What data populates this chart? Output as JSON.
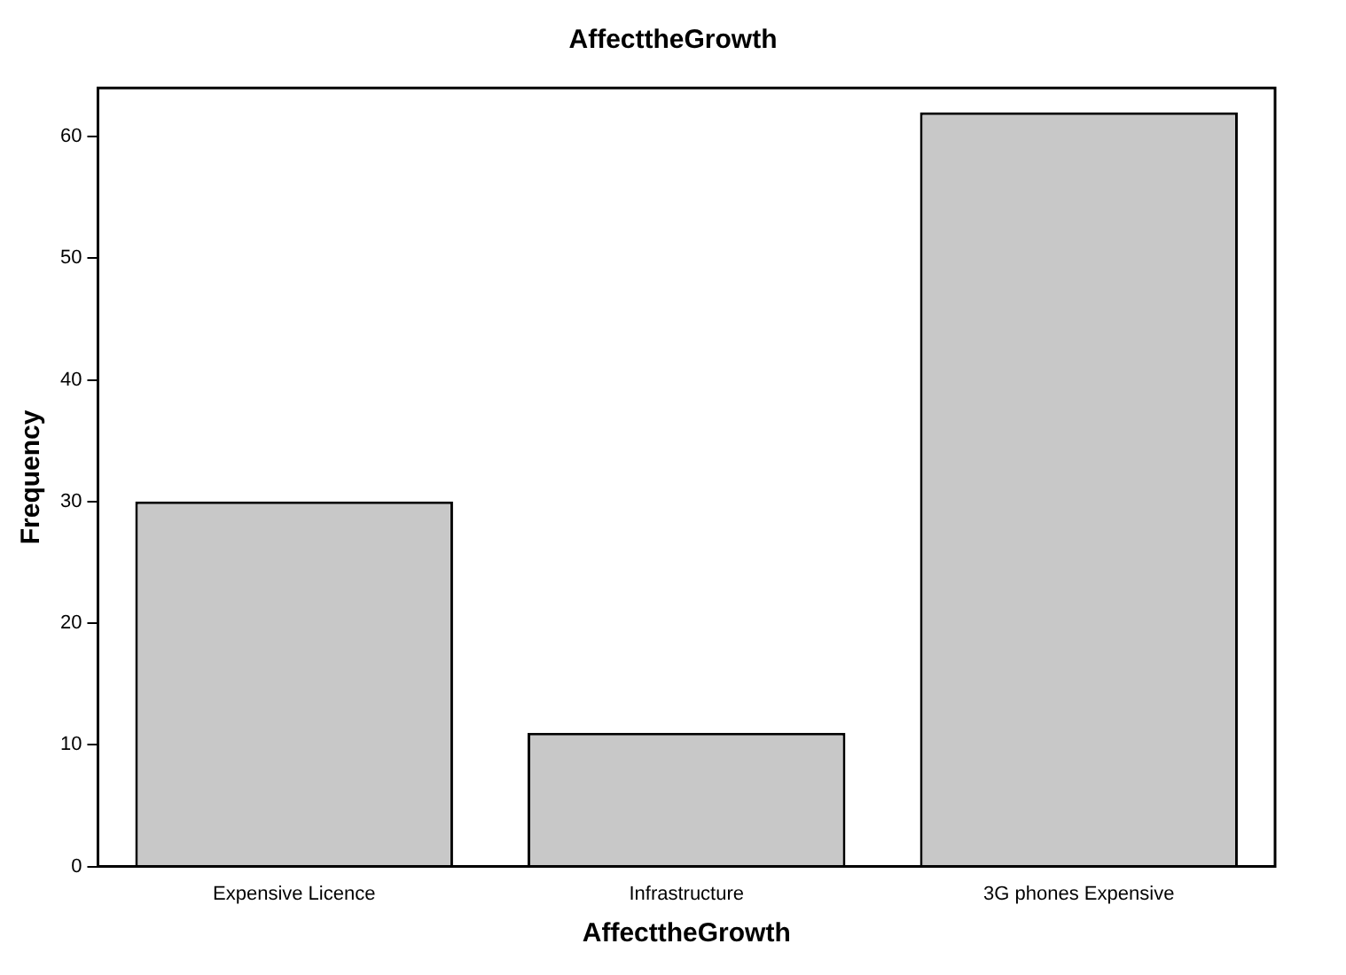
{
  "chart_data": {
    "type": "bar",
    "title": "AffecttheGrowth",
    "xlabel": "AffecttheGrowth",
    "ylabel": "Frequency",
    "categories": [
      "Expensive Licence",
      "Infrastructure",
      "3G phones Expensive"
    ],
    "values": [
      30,
      11,
      62
    ],
    "color": "#c8c8c8",
    "ylim": [
      0,
      64
    ],
    "yticks": [
      0,
      10,
      20,
      30,
      40,
      50,
      60
    ],
    "grid": false,
    "legend": false
  }
}
